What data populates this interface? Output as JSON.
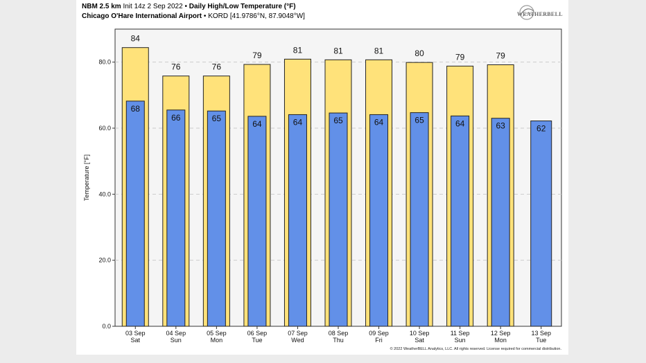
{
  "header": {
    "model": "NBM 2.5 km",
    "init": "Init 14z 2 Sep 2022",
    "bullet": "•",
    "title": "Daily High/Low Temperature (°F)",
    "station_name": "Chicago O'Hare International Airport",
    "station_info": "KORD [41.9786°N, 87.9048°W]"
  },
  "logo": {
    "text": "WEATHERBELL"
  },
  "copyright": "© 2022 WeatherBELL Analytics, LLC. All rights reserved. License required for commercial distribution.",
  "colors": {
    "high": "#ffe27a",
    "low": "#6290e8",
    "plot_bg": "#f5f5f5",
    "grid": "#cccccc"
  },
  "chart_data": {
    "type": "bar",
    "ylabel": "Temperature [°F]",
    "ylim": [
      0,
      90
    ],
    "yticks": [
      0,
      20,
      40,
      60,
      80
    ],
    "ytick_labels": [
      "0.0",
      "20.0",
      "40.0",
      "60.0",
      "80.0"
    ],
    "grid": "horizontal dashed",
    "categories": [
      [
        "03 Sep",
        "Sat"
      ],
      [
        "04 Sep",
        "Sun"
      ],
      [
        "05 Sep",
        "Mon"
      ],
      [
        "06 Sep",
        "Tue"
      ],
      [
        "07 Sep",
        "Wed"
      ],
      [
        "08 Sep",
        "Thu"
      ],
      [
        "09 Sep",
        "Fri"
      ],
      [
        "10 Sep",
        "Sat"
      ],
      [
        "11 Sep",
        "Sun"
      ],
      [
        "12 Sep",
        "Mon"
      ],
      [
        "13 Sep",
        "Tue"
      ]
    ],
    "series": [
      {
        "values": [
          84.4,
          75.8,
          75.8,
          79.3,
          80.9,
          80.7,
          80.7,
          79.9,
          78.8,
          79.2,
          null
        ],
        "labels": [
          "84",
          "76",
          "76",
          "79",
          "81",
          "81",
          "81",
          "80",
          "79",
          "79",
          ""
        ]
      },
      {
        "values": [
          68.2,
          65.5,
          65.2,
          63.6,
          64.1,
          64.6,
          64.1,
          64.7,
          63.7,
          63.0,
          62.2
        ],
        "labels": [
          "68",
          "66",
          "65",
          "64",
          "64",
          "65",
          "64",
          "65",
          "64",
          "63",
          "62"
        ]
      }
    ]
  }
}
